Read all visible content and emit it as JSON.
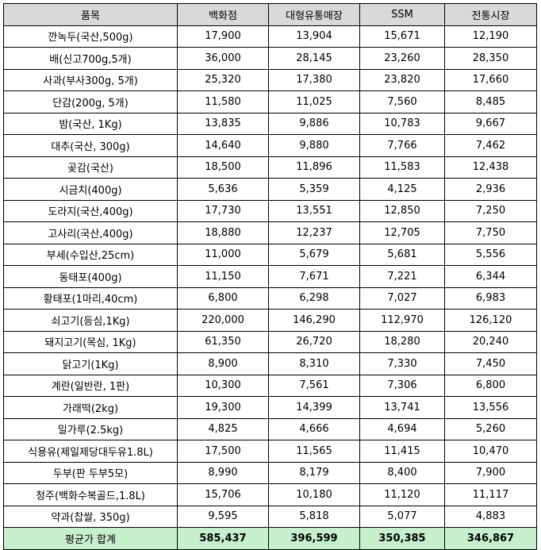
{
  "table": {
    "headers": [
      "품목",
      "백화점",
      "대형유통매장",
      "SSM",
      "전통시장"
    ],
    "rows": [
      [
        "깐녹두(국산,500g)",
        "17,900",
        "13,904",
        "15,671",
        "12,190"
      ],
      [
        "배(신고700g,5개)",
        "36,000",
        "28,145",
        "23,260",
        "28,350"
      ],
      [
        "사과(부사300g, 5개)",
        "25,320",
        "17,380",
        "23,820",
        "17,660"
      ],
      [
        "단감(200g, 5개)",
        "11,580",
        "11,025",
        "7,560",
        "8,485"
      ],
      [
        "밤(국산, 1Kg)",
        "13,835",
        "9,886",
        "10,783",
        "9,667"
      ],
      [
        "대추(국산, 300g)",
        "14,640",
        "9,880",
        "7,766",
        "7,462"
      ],
      [
        "곶감(국산)",
        "18,500",
        "11,896",
        "11,583",
        "12,438"
      ],
      [
        "시금치(400g)",
        "5,636",
        "5,359",
        "4,125",
        "2,936"
      ],
      [
        "도라지(국산,400g)",
        "17,730",
        "13,551",
        "12,850",
        "7,250"
      ],
      [
        "고사리(국산,400g)",
        "18,880",
        "12,237",
        "12,705",
        "7,750"
      ],
      [
        "부세(수입산,25cm)",
        "11,000",
        "5,679",
        "5,681",
        "5,556"
      ],
      [
        "동태포(400g)",
        "11,150",
        "7,671",
        "7,221",
        "6,344"
      ],
      [
        "황태포(1마리,40cm)",
        "6,800",
        "6,298",
        "7,027",
        "6,983"
      ],
      [
        "쇠고기(등심,1Kg)",
        "220,000",
        "146,290",
        "112,970",
        "126,120"
      ],
      [
        "돼지고기(목심, 1Kg)",
        "61,350",
        "26,720",
        "18,280",
        "20,240"
      ],
      [
        "닭고기(1Kg)",
        "8,900",
        "8,310",
        "7,330",
        "7,450"
      ],
      [
        "계란(일반란, 1판)",
        "10,300",
        "7,561",
        "7,306",
        "6,800"
      ],
      [
        "가래떡(2kg)",
        "19,300",
        "14,399",
        "13,741",
        "13,556"
      ],
      [
        "밀가루(2.5kg)",
        "4,825",
        "4,666",
        "4,694",
        "5,260"
      ],
      [
        "식용유(제일제당대두유1.8L)",
        "17,500",
        "11,565",
        "11,415",
        "10,470"
      ],
      [
        "두부(판 두부5모)",
        "8,990",
        "8,179",
        "8,400",
        "7,900"
      ],
      [
        "청주(백화수복골드,1.8L)",
        "15,706",
        "10,180",
        "11,120",
        "11,117"
      ],
      [
        "약과(찹쌀, 350g)",
        "9,595",
        "5,818",
        "5,077",
        "4,883"
      ]
    ],
    "footer": [
      "평균가 합계",
      "585,437",
      "396,599",
      "350,385",
      "346,867"
    ]
  },
  "colors": {
    "header_bg": "#d9d9d9",
    "footer_bg": "#c6efce",
    "border": "#000000"
  }
}
